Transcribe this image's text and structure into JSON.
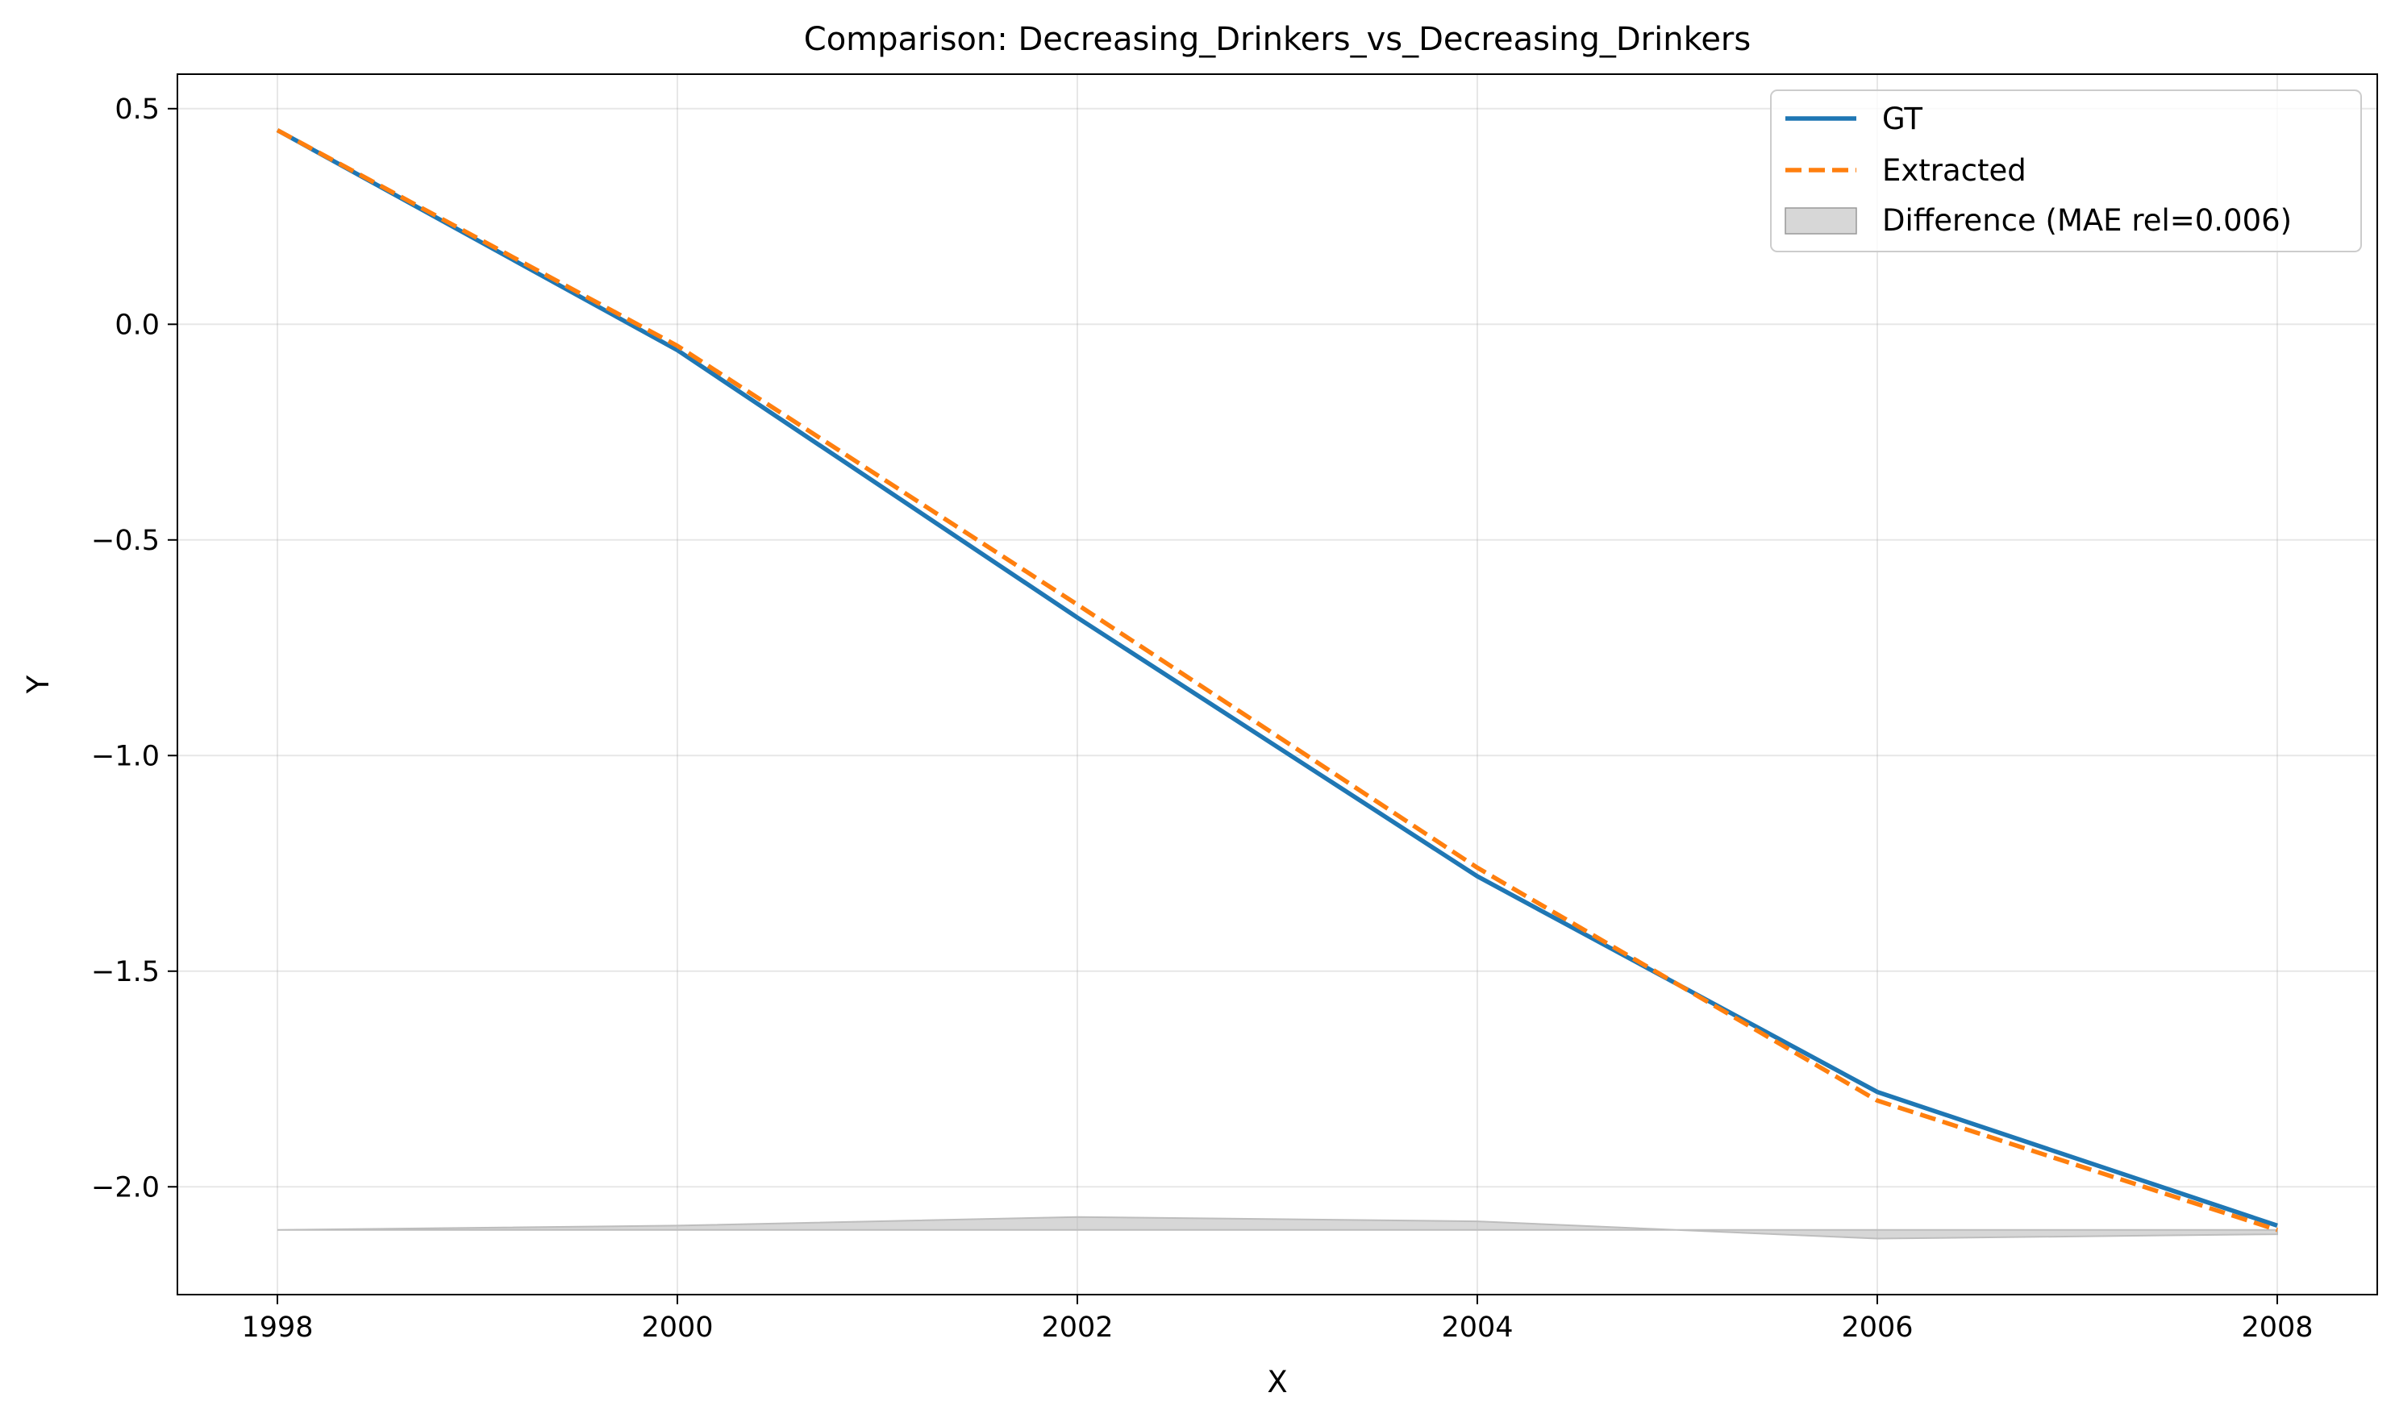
{
  "chart_data": {
    "type": "line",
    "title": "Comparison: Decreasing_Drinkers_vs_Decreasing_Drinkers",
    "xlabel": "X",
    "ylabel": "Y",
    "xlim": [
      1997.5,
      2008.5
    ],
    "ylim": [
      -2.25,
      0.58
    ],
    "x_ticks": [
      1998,
      2000,
      2002,
      2004,
      2006,
      2008
    ],
    "y_ticks": [
      0.5,
      0.0,
      -0.5,
      -1.0,
      -1.5,
      -2.0
    ],
    "y_tick_labels": [
      "0.5",
      "0.0",
      "−0.5",
      "−1.0",
      "−1.5",
      "−2.0"
    ],
    "grid": true,
    "legend_position": "top-right",
    "x": [
      1998,
      2000,
      2002,
      2004,
      2006,
      2008
    ],
    "series": [
      {
        "name": "GT",
        "style": "solid",
        "color": "#1f77b4",
        "values": [
          0.45,
          -0.06,
          -0.68,
          -1.28,
          -1.78,
          -2.09
        ]
      },
      {
        "name": "Extracted",
        "style": "dashed",
        "color": "#ff7f0e",
        "values": [
          0.45,
          -0.05,
          -0.65,
          -1.26,
          -1.8,
          -2.1
        ]
      }
    ],
    "difference_band": {
      "name": "Difference (MAE rel=0.006)",
      "color": "#bdbdbd",
      "baseline": -2.1,
      "values": [
        0.0,
        0.01,
        0.03,
        0.02,
        -0.02,
        -0.01
      ]
    }
  }
}
